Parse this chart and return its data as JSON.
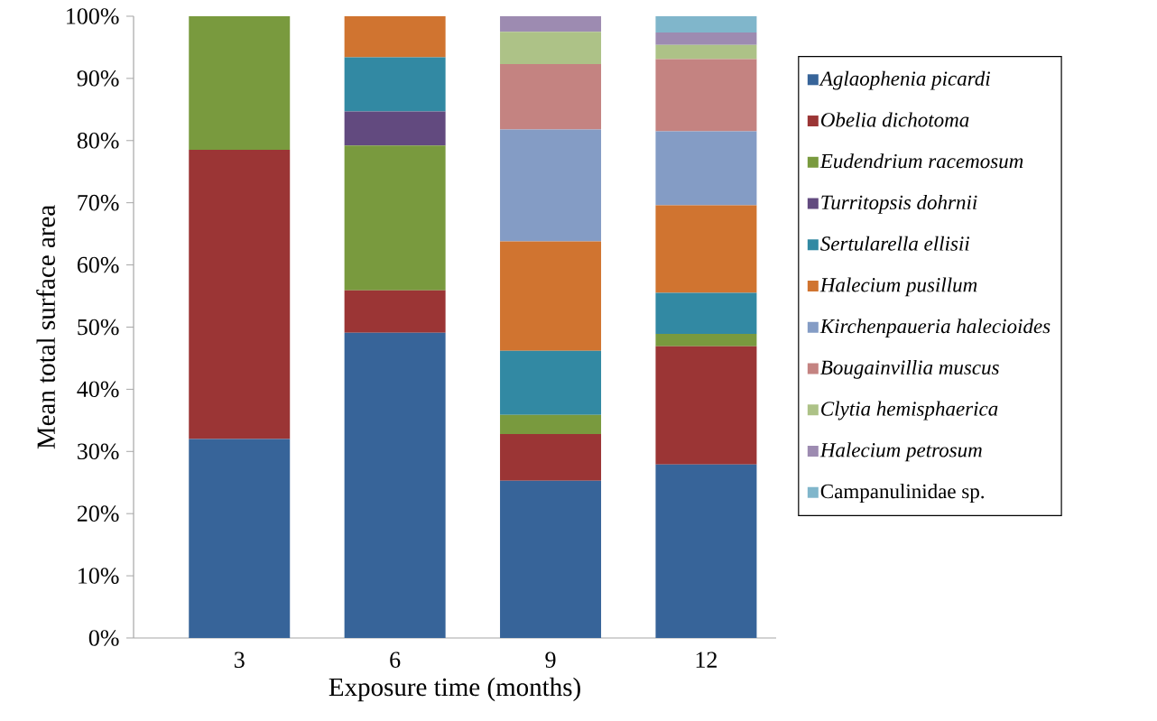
{
  "chart_data": {
    "type": "bar",
    "stacked": true,
    "xlabel": "Exposure time (months)",
    "ylabel": "Mean total surface area",
    "categories": [
      "3",
      "6",
      "9",
      "12"
    ],
    "ylim": [
      0,
      100
    ],
    "yticks": [
      {
        "value": 0,
        "label": "0%"
      },
      {
        "value": 10,
        "label": "10%"
      },
      {
        "value": 20,
        "label": "20%"
      },
      {
        "value": 30,
        "label": "30%"
      },
      {
        "value": 40,
        "label": "40%"
      },
      {
        "value": 50,
        "label": "50%"
      },
      {
        "value": 60,
        "label": "60%"
      },
      {
        "value": 70,
        "label": "70%"
      },
      {
        "value": 80,
        "label": "80%"
      },
      {
        "value": 90,
        "label": "90%"
      },
      {
        "value": 100,
        "label": "100%"
      }
    ],
    "legend": "right",
    "series": [
      {
        "name": "*Aglaophenia picardi*",
        "color": "#376499",
        "values": [
          32,
          49.1,
          25.3,
          27.9
        ]
      },
      {
        "name": "*Obelia dichotoma*",
        "color": "#9b3535",
        "values": [
          46.5,
          6.8,
          7.5,
          19.0
        ]
      },
      {
        "name": "*Eudendrium racemosum*",
        "color": "#799a3e",
        "values": [
          21.5,
          23.3,
          3.1,
          2.0
        ]
      },
      {
        "name": "*Turritopsis dohrnii*",
        "color": "#624a7f",
        "values": [
          0,
          5.5,
          0,
          0
        ]
      },
      {
        "name": "*Sertularella ellisii*",
        "color": "#3289a3",
        "values": [
          0,
          8.7,
          10.3,
          6.6
        ]
      },
      {
        "name": "*Halecium pusillum*",
        "color": "#d07430",
        "values": [
          0,
          6.6,
          17.6,
          14.1
        ]
      },
      {
        "name": "*Kirchenpaueria halecioides*",
        "color": "#849cc5",
        "values": [
          0,
          0,
          18.0,
          11.9
        ]
      },
      {
        "name": "*Bougainvillia muscus*",
        "color": "#c48381",
        "values": [
          0,
          0,
          10.5,
          11.6
        ]
      },
      {
        "name": "*Clytia hemisphaerica*",
        "color": "#adc287",
        "values": [
          0,
          0,
          5.2,
          2.3
        ]
      },
      {
        "name": "*Halecium petrosum*",
        "color": "#9d8bb1",
        "values": [
          0,
          0,
          2.5,
          2.0
        ]
      },
      {
        "name": "Campanulinidae sp.",
        "color": "#80b6cb",
        "values": [
          0,
          0,
          0,
          2.6
        ]
      }
    ]
  }
}
